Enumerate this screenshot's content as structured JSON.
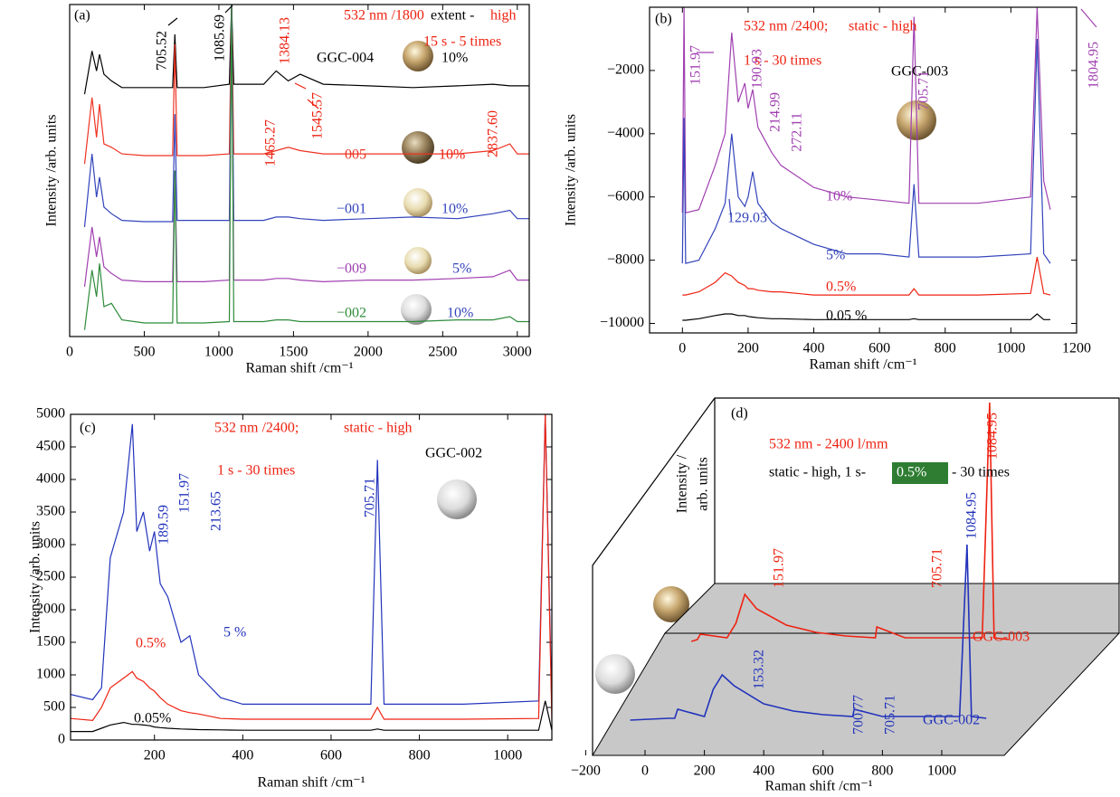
{
  "chart_data": [
    {
      "type": "line",
      "label": "(a)",
      "xlabel": "Raman shift /cm⁻¹",
      "ylabel": "Intensity /arb. units",
      "x": [
        100,
        150,
        180,
        200,
        230,
        280,
        350,
        500,
        690,
        705,
        720,
        900,
        1070,
        1085,
        1100,
        1300,
        1384,
        1465,
        1545,
        1700,
        2000,
        2300,
        2600,
        2837,
        2950,
        3000,
        3080
      ],
      "xlim": [
        0,
        3080
      ],
      "xticks": [
        0,
        500,
        1000,
        1500,
        2000,
        2500,
        3000
      ],
      "ylim": [
        0,
        100
      ],
      "series": [
        {
          "name": "GGC-004",
          "color": "#000000",
          "values": [
            73,
            86,
            80,
            85,
            79,
            77,
            75,
            75,
            75,
            91,
            75,
            75,
            76,
            100,
            76,
            76,
            80,
            77,
            79,
            76,
            75.5,
            75,
            75.5,
            76,
            75.5,
            75.5,
            75.5
          ]
        },
        {
          "name": "−005",
          "color": "#ee3322",
          "values": [
            52,
            72,
            60,
            70,
            58,
            57,
            55,
            54.5,
            54.5,
            88,
            54.5,
            54.5,
            55,
            100,
            55,
            55,
            56,
            57,
            56,
            55,
            55,
            55,
            55,
            56,
            58,
            55,
            55
          ]
        },
        {
          "name": "−001",
          "color": "#3344bb",
          "values": [
            33,
            55,
            42,
            48,
            39,
            37,
            35,
            34.6,
            34.6,
            67,
            35,
            35,
            35,
            100,
            35,
            35,
            36,
            36,
            35.5,
            35,
            35.5,
            36,
            35.5,
            37,
            38,
            35.5,
            35.5
          ]
        },
        {
          "name": "−009",
          "color": "#a040b0",
          "values": [
            15,
            33,
            24,
            30,
            21,
            19,
            17,
            16.5,
            16.5,
            50,
            16.5,
            16.5,
            17,
            100,
            17,
            17,
            17.5,
            17.5,
            17,
            16.5,
            17,
            17,
            17.5,
            18,
            20,
            17,
            17
          ]
        },
        {
          "name": "−002",
          "color": "#2e8b3a",
          "values": [
            2,
            20,
            12,
            22,
            9,
            10,
            5,
            4.1,
            4.1,
            50,
            4.1,
            4.1,
            4.5,
            100,
            4.5,
            4.5,
            5,
            5,
            4.5,
            4.5,
            4.5,
            4.5,
            5,
            5,
            6,
            4.5,
            4.5
          ]
        }
      ],
      "annotations": [
        "705.52",
        "1085.69",
        "532 nm /1800",
        "extent -",
        "high",
        "15 s - 5 times",
        "1384.13",
        "1545.57",
        "1465.27",
        "2837.60",
        "10%",
        "10%",
        "10%",
        "5%",
        "10%"
      ]
    },
    {
      "type": "line",
      "label": "(b)",
      "xlabel": "Raman shift /cm⁻¹",
      "ylabel": "Intensity /arb. units",
      "x": [
        0,
        5,
        10,
        50,
        100,
        130,
        150,
        170,
        190,
        200,
        214,
        230,
        272,
        300,
        400,
        500,
        600,
        690,
        705,
        720,
        900,
        1060,
        1080,
        1100,
        1120
      ],
      "xlim": [
        -100,
        1200
      ],
      "xticks": [
        0,
        200,
        400,
        600,
        800,
        1000,
        1200
      ],
      "ylim": [
        -10300,
        0
      ],
      "yticks": [
        {
          "value": -10000,
          "label": "−10000"
        },
        {
          "value": -8000,
          "label": "−8000"
        },
        {
          "value": -6000,
          "label": "−6000"
        },
        {
          "value": -4000,
          "label": "−4000"
        },
        {
          "value": -2000,
          "label": "−2000"
        }
      ],
      "series": [
        {
          "name": "10%",
          "color": "#a040b0",
          "values": [
            -6500,
            0,
            -6500,
            -6400,
            -5000,
            -4000,
            -800,
            -3000,
            -2400,
            -3200,
            -2600,
            -3800,
            -4600,
            -5000,
            -5700,
            -6000,
            -6100,
            -6200,
            -300,
            -6200,
            -6200,
            -6000,
            0,
            -5500,
            -6400
          ]
        },
        {
          "name": "5%",
          "color": "#3344bb",
          "values": [
            -8100,
            -3500,
            -8100,
            -8000,
            -7000,
            -6200,
            -4000,
            -6000,
            -6300,
            -6000,
            -5200,
            -6200,
            -6800,
            -7000,
            -7500,
            -7800,
            -7800,
            -7900,
            -5600,
            -7900,
            -7900,
            -7800,
            -1000,
            -7800,
            -8100
          ]
        },
        {
          "name": "0.5%",
          "color": "#ee2211",
          "values": [
            -9100,
            -9100,
            -9100,
            -9000,
            -8700,
            -8400,
            -8500,
            -8700,
            -8800,
            -8900,
            -8900,
            -8950,
            -9000,
            -9000,
            -9100,
            -9100,
            -9100,
            -9100,
            -8900,
            -9100,
            -9100,
            -9050,
            -7900,
            -9050,
            -9100
          ]
        },
        {
          "name": "0.05 %",
          "color": "#000000",
          "values": [
            -9900,
            -9900,
            -9900,
            -9850,
            -9750,
            -9700,
            -9700,
            -9750,
            -9750,
            -9780,
            -9800,
            -9820,
            -9850,
            -9850,
            -9880,
            -9880,
            -9880,
            -9880,
            -9850,
            -9880,
            -9880,
            -9880,
            -9700,
            -9880,
            -9880
          ]
        }
      ],
      "annotations": [
        "532 nm /2400;",
        "static - high",
        "1 s - 30 times",
        "GGC-003",
        "151.97",
        "190.93",
        "214.99",
        "272.11",
        "705.71",
        "1804.95",
        "129.03"
      ]
    },
    {
      "type": "line",
      "label": "(c)",
      "xlabel": "Raman shift /cm⁻¹",
      "ylabel": "Intensity /arb. units",
      "x": [
        10,
        60,
        80,
        100,
        130,
        150,
        160,
        175,
        189,
        200,
        213,
        230,
        260,
        280,
        300,
        350,
        400,
        500,
        600,
        690,
        705,
        720,
        900,
        1070,
        1085,
        1100
      ],
      "xlim": [
        10,
        1100
      ],
      "xticks": [
        200,
        400,
        600,
        800,
        1000
      ],
      "ylim": [
        0,
        5000
      ],
      "yticks": [
        0,
        500,
        1000,
        1500,
        2000,
        2500,
        3000,
        3500,
        4000,
        4500,
        5000
      ],
      "series": [
        {
          "name": "5 %",
          "color": "#2233bb",
          "values": [
            700,
            620,
            800,
            2800,
            3500,
            4850,
            3200,
            3500,
            2900,
            3200,
            2400,
            2200,
            1500,
            1600,
            1000,
            650,
            550,
            550,
            550,
            550,
            4300,
            550,
            550,
            600,
            5000,
            500
          ]
        },
        {
          "name": "0.5%",
          "color": "#ee2211",
          "values": [
            330,
            300,
            500,
            800,
            950,
            1050,
            950,
            900,
            800,
            750,
            650,
            550,
            450,
            420,
            400,
            330,
            320,
            320,
            320,
            320,
            500,
            320,
            320,
            330,
            5000,
            300
          ]
        },
        {
          "name": "0.05%",
          "color": "#000000",
          "values": [
            130,
            130,
            180,
            230,
            270,
            240,
            240,
            230,
            220,
            200,
            190,
            180,
            170,
            165,
            160,
            155,
            150,
            150,
            150,
            150,
            170,
            150,
            150,
            150,
            600,
            150
          ]
        }
      ],
      "annotations": [
        "532 nm /2400;",
        "static - high",
        "1 s - 30 times",
        "GGC-002",
        "189.59",
        "151.97",
        "213.65",
        "705.71"
      ]
    },
    {
      "type": "line3d",
      "label": "(d)",
      "xlabel": "Raman shift /cm⁻¹",
      "ylabel": [
        "Intensity /",
        "arb. units"
      ],
      "x": [
        -50,
        80,
        100,
        110,
        200,
        230,
        260,
        300,
        400,
        500,
        600,
        700,
        705,
        800,
        900,
        1060,
        1085,
        1100,
        1150
      ],
      "xlim": [
        -200,
        1150
      ],
      "xticks": [
        {
          "value": -200,
          "label": "−200"
        },
        0,
        200,
        400,
        600,
        800,
        1000
      ],
      "ylim": [
        0,
        140
      ],
      "series": [
        {
          "name": "GGC-003",
          "color": "#ee2211",
          "values": [
            null,
            4,
            5,
            8,
            6,
            14,
            30,
            22,
            13,
            9,
            7,
            6,
            12,
            6,
            6,
            6,
            136,
            6,
            5
          ]
        },
        {
          "name": "GGC-002",
          "color": "#2233bb",
          "values": [
            3,
            4,
            4,
            9,
            5,
            20,
            28,
            22,
            12,
            8,
            6,
            5,
            9,
            5,
            5,
            5,
            100,
            5,
            4
          ]
        }
      ],
      "annotations": [
        "532 nm - 2400 l/mm",
        "static - high, 1 s-",
        "0.5%",
        "- 30 times",
        "1084.95",
        "151.97",
        "705.71",
        "1084.95",
        "153.32",
        "700.77",
        "705.71"
      ]
    }
  ]
}
